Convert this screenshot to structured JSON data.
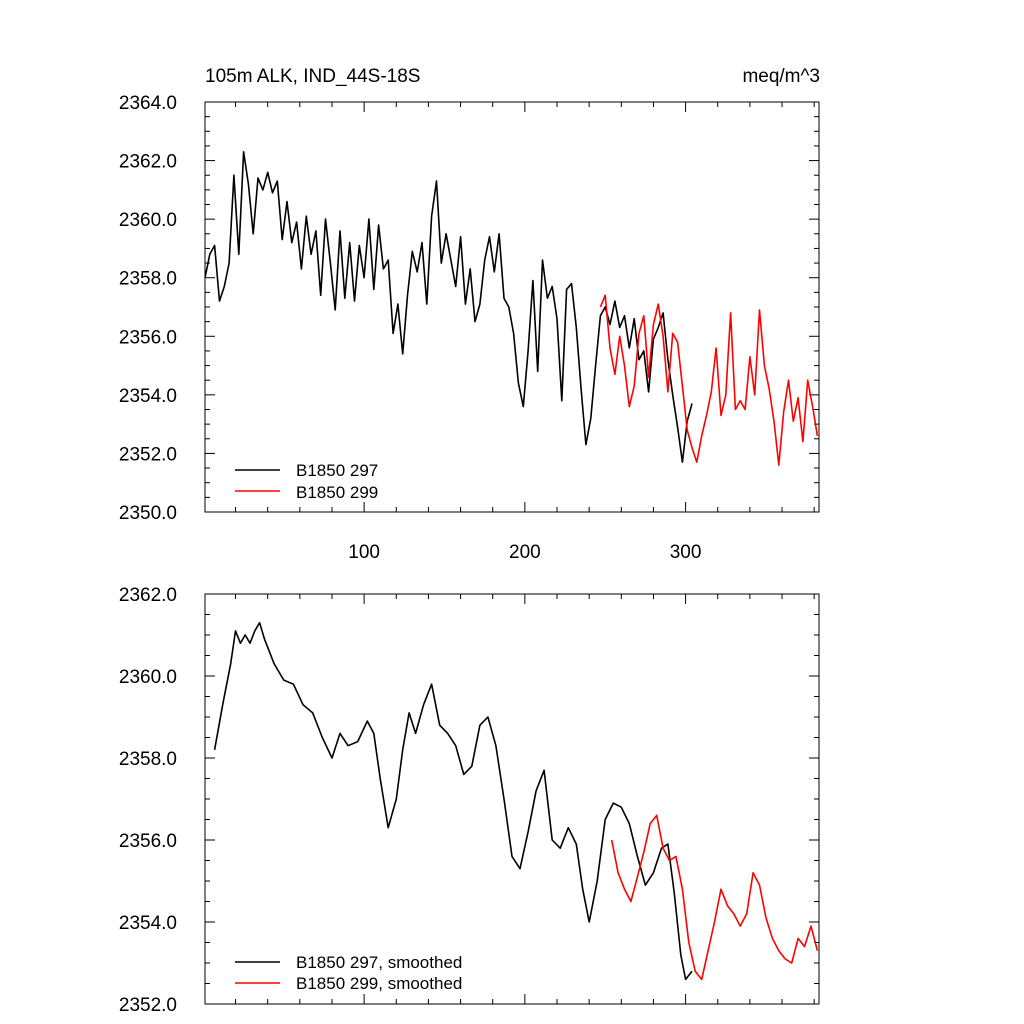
{
  "chart_data": [
    {
      "type": "line",
      "title": "105m ALK, IND_44S-18S",
      "units": "meq/m^3",
      "xlim": [
        1,
        383
      ],
      "ylim": [
        2350,
        2364
      ],
      "yticks": [
        2350,
        2352,
        2354,
        2356,
        2358,
        2360,
        2362,
        2364
      ],
      "ytick_labels": [
        "2350.0",
        "2352.0",
        "2354.0",
        "2356.0",
        "2358.0",
        "2360.0",
        "2362.0",
        "2364.0"
      ],
      "xticks": [
        100,
        200,
        300
      ],
      "xtick_labels": [
        "100",
        "200",
        "300"
      ],
      "legend_position": "bottom-left",
      "series": [
        {
          "name": "B1850 297",
          "color": "#000000",
          "points": [
            [
              1,
              2358.0
            ],
            [
              4,
              2358.8
            ],
            [
              7,
              2359.1
            ],
            [
              10,
              2357.2
            ],
            [
              13,
              2357.7
            ],
            [
              16,
              2358.5
            ],
            [
              19,
              2361.5
            ],
            [
              22,
              2358.8
            ],
            [
              25,
              2362.3
            ],
            [
              28,
              2361.2
            ],
            [
              31,
              2359.5
            ],
            [
              34,
              2361.4
            ],
            [
              37,
              2361.0
            ],
            [
              40,
              2361.6
            ],
            [
              43,
              2360.9
            ],
            [
              46,
              2361.3
            ],
            [
              49,
              2359.3
            ],
            [
              52,
              2360.6
            ],
            [
              55,
              2359.2
            ],
            [
              58,
              2359.9
            ],
            [
              61,
              2358.3
            ],
            [
              64,
              2360.1
            ],
            [
              67,
              2358.8
            ],
            [
              70,
              2359.6
            ],
            [
              73,
              2357.4
            ],
            [
              76,
              2360.0
            ],
            [
              79,
              2358.5
            ],
            [
              82,
              2356.9
            ],
            [
              85,
              2359.6
            ],
            [
              88,
              2357.3
            ],
            [
              91,
              2359.2
            ],
            [
              94,
              2357.2
            ],
            [
              97,
              2359.1
            ],
            [
              100,
              2358.0
            ],
            [
              103,
              2360.0
            ],
            [
              106,
              2357.6
            ],
            [
              109,
              2359.8
            ],
            [
              112,
              2358.3
            ],
            [
              115,
              2358.6
            ],
            [
              118,
              2356.1
            ],
            [
              121,
              2357.1
            ],
            [
              124,
              2355.4
            ],
            [
              127,
              2357.4
            ],
            [
              130,
              2358.9
            ],
            [
              133,
              2358.2
            ],
            [
              136,
              2359.2
            ],
            [
              139,
              2357.1
            ],
            [
              142,
              2360.1
            ],
            [
              145,
              2361.3
            ],
            [
              148,
              2358.5
            ],
            [
              151,
              2359.5
            ],
            [
              154,
              2358.6
            ],
            [
              157,
              2357.7
            ],
            [
              160,
              2359.4
            ],
            [
              163,
              2357.1
            ],
            [
              166,
              2358.3
            ],
            [
              169,
              2356.5
            ],
            [
              172,
              2357.1
            ],
            [
              175,
              2358.6
            ],
            [
              178,
              2359.4
            ],
            [
              181,
              2358.2
            ],
            [
              184,
              2359.5
            ],
            [
              187,
              2357.3
            ],
            [
              190,
              2357.0
            ],
            [
              193,
              2356.1
            ],
            [
              196,
              2354.4
            ],
            [
              199,
              2353.6
            ],
            [
              202,
              2355.5
            ],
            [
              205,
              2357.9
            ],
            [
              208,
              2354.8
            ],
            [
              211,
              2358.6
            ],
            [
              214,
              2357.3
            ],
            [
              217,
              2357.7
            ],
            [
              220,
              2356.6
            ],
            [
              223,
              2353.8
            ],
            [
              226,
              2357.6
            ],
            [
              229,
              2357.8
            ],
            [
              232,
              2356.3
            ],
            [
              235,
              2354.2
            ],
            [
              238,
              2352.3
            ],
            [
              241,
              2353.2
            ],
            [
              244,
              2355.0
            ],
            [
              247,
              2356.7
            ],
            [
              250,
              2357.0
            ],
            [
              253,
              2356.4
            ],
            [
              256,
              2357.2
            ],
            [
              259,
              2356.3
            ],
            [
              262,
              2356.7
            ],
            [
              265,
              2355.6
            ],
            [
              268,
              2356.6
            ],
            [
              271,
              2355.2
            ],
            [
              274,
              2355.5
            ],
            [
              277,
              2354.1
            ],
            [
              280,
              2355.9
            ],
            [
              283,
              2356.3
            ],
            [
              286,
              2356.8
            ],
            [
              289,
              2355.2
            ],
            [
              292,
              2354.0
            ],
            [
              295,
              2352.9
            ],
            [
              298,
              2351.7
            ],
            [
              301,
              2353.1
            ],
            [
              304,
              2353.7
            ]
          ]
        },
        {
          "name": "B1850 299",
          "color": "#ff0000",
          "points": [
            [
              247,
              2357.0
            ],
            [
              250,
              2357.4
            ],
            [
              253,
              2355.6
            ],
            [
              256,
              2354.7
            ],
            [
              259,
              2356.0
            ],
            [
              262,
              2355.0
            ],
            [
              265,
              2353.6
            ],
            [
              268,
              2354.3
            ],
            [
              271,
              2356.1
            ],
            [
              274,
              2356.7
            ],
            [
              277,
              2354.6
            ],
            [
              280,
              2356.4
            ],
            [
              283,
              2357.1
            ],
            [
              286,
              2356.0
            ],
            [
              289,
              2354.1
            ],
            [
              292,
              2356.1
            ],
            [
              295,
              2355.8
            ],
            [
              298,
              2354.3
            ],
            [
              301,
              2352.8
            ],
            [
              304,
              2352.2
            ],
            [
              307,
              2351.7
            ],
            [
              310,
              2352.6
            ],
            [
              313,
              2353.3
            ],
            [
              316,
              2354.1
            ],
            [
              319,
              2355.6
            ],
            [
              322,
              2353.3
            ],
            [
              325,
              2354.0
            ],
            [
              328,
              2356.8
            ],
            [
              331,
              2353.5
            ],
            [
              334,
              2353.8
            ],
            [
              337,
              2353.5
            ],
            [
              340,
              2355.3
            ],
            [
              343,
              2354.0
            ],
            [
              346,
              2356.9
            ],
            [
              349,
              2355.0
            ],
            [
              352,
              2354.2
            ],
            [
              355,
              2353.1
            ],
            [
              358,
              2351.6
            ],
            [
              361,
              2353.4
            ],
            [
              364,
              2354.5
            ],
            [
              367,
              2353.1
            ],
            [
              370,
              2353.9
            ],
            [
              373,
              2352.4
            ],
            [
              376,
              2354.5
            ],
            [
              379,
              2353.6
            ],
            [
              382,
              2352.6
            ]
          ]
        }
      ]
    },
    {
      "type": "line",
      "title": "",
      "xlim": [
        1,
        383
      ],
      "ylim": [
        2352,
        2362
      ],
      "yticks": [
        2352,
        2354,
        2356,
        2358,
        2360,
        2362
      ],
      "ytick_labels": [
        "2352.0",
        "2354.0",
        "2356.0",
        "2358.0",
        "2360.0",
        "2362.0"
      ],
      "legend_position": "bottom-left",
      "series": [
        {
          "name": "B1850 297, smoothed",
          "color": "#000000",
          "points": [
            [
              7,
              2358.2
            ],
            [
              12,
              2359.3
            ],
            [
              17,
              2360.3
            ],
            [
              20,
              2361.1
            ],
            [
              23,
              2360.8
            ],
            [
              26,
              2361.0
            ],
            [
              29,
              2360.8
            ],
            [
              32,
              2361.1
            ],
            [
              35,
              2361.3
            ],
            [
              38,
              2360.9
            ],
            [
              44,
              2360.3
            ],
            [
              50,
              2359.9
            ],
            [
              56,
              2359.8
            ],
            [
              62,
              2359.3
            ],
            [
              68,
              2359.1
            ],
            [
              74,
              2358.5
            ],
            [
              80,
              2358.0
            ],
            [
              85,
              2358.6
            ],
            [
              90,
              2358.3
            ],
            [
              96,
              2358.4
            ],
            [
              102,
              2358.9
            ],
            [
              106,
              2358.6
            ],
            [
              110,
              2357.5
            ],
            [
              115,
              2356.3
            ],
            [
              120,
              2357.0
            ],
            [
              124,
              2358.2
            ],
            [
              128,
              2359.1
            ],
            [
              132,
              2358.6
            ],
            [
              137,
              2359.3
            ],
            [
              142,
              2359.8
            ],
            [
              147,
              2358.8
            ],
            [
              152,
              2358.6
            ],
            [
              157,
              2358.3
            ],
            [
              162,
              2357.6
            ],
            [
              167,
              2357.8
            ],
            [
              172,
              2358.8
            ],
            [
              177,
              2359.0
            ],
            [
              182,
              2358.3
            ],
            [
              187,
              2357.0
            ],
            [
              192,
              2355.6
            ],
            [
              197,
              2355.3
            ],
            [
              202,
              2356.2
            ],
            [
              207,
              2357.2
            ],
            [
              212,
              2357.7
            ],
            [
              217,
              2356.0
            ],
            [
              222,
              2355.8
            ],
            [
              227,
              2356.3
            ],
            [
              232,
              2355.9
            ],
            [
              236,
              2354.8
            ],
            [
              240,
              2354.0
            ],
            [
              245,
              2355.0
            ],
            [
              250,
              2356.5
            ],
            [
              255,
              2356.9
            ],
            [
              260,
              2356.8
            ],
            [
              265,
              2356.4
            ],
            [
              270,
              2355.6
            ],
            [
              275,
              2354.9
            ],
            [
              280,
              2355.2
            ],
            [
              285,
              2355.8
            ],
            [
              289,
              2355.9
            ],
            [
              293,
              2354.7
            ],
            [
              297,
              2353.2
            ],
            [
              300,
              2352.6
            ],
            [
              304,
              2352.8
            ]
          ]
        },
        {
          "name": "B1850 299, smoothed",
          "color": "#ff0000",
          "points": [
            [
              254,
              2356.0
            ],
            [
              258,
              2355.2
            ],
            [
              262,
              2354.8
            ],
            [
              266,
              2354.5
            ],
            [
              270,
              2355.1
            ],
            [
              274,
              2355.7
            ],
            [
              278,
              2356.4
            ],
            [
              282,
              2356.6
            ],
            [
              286,
              2355.8
            ],
            [
              290,
              2355.5
            ],
            [
              294,
              2355.6
            ],
            [
              298,
              2354.8
            ],
            [
              302,
              2353.5
            ],
            [
              306,
              2352.8
            ],
            [
              310,
              2352.6
            ],
            [
              314,
              2353.3
            ],
            [
              318,
              2354.0
            ],
            [
              322,
              2354.8
            ],
            [
              326,
              2354.4
            ],
            [
              330,
              2354.2
            ],
            [
              334,
              2353.9
            ],
            [
              338,
              2354.2
            ],
            [
              342,
              2355.2
            ],
            [
              346,
              2354.9
            ],
            [
              350,
              2354.1
            ],
            [
              354,
              2353.6
            ],
            [
              358,
              2353.3
            ],
            [
              362,
              2353.1
            ],
            [
              366,
              2353.0
            ],
            [
              370,
              2353.6
            ],
            [
              374,
              2353.4
            ],
            [
              378,
              2353.9
            ],
            [
              382,
              2353.3
            ]
          ]
        }
      ]
    }
  ]
}
